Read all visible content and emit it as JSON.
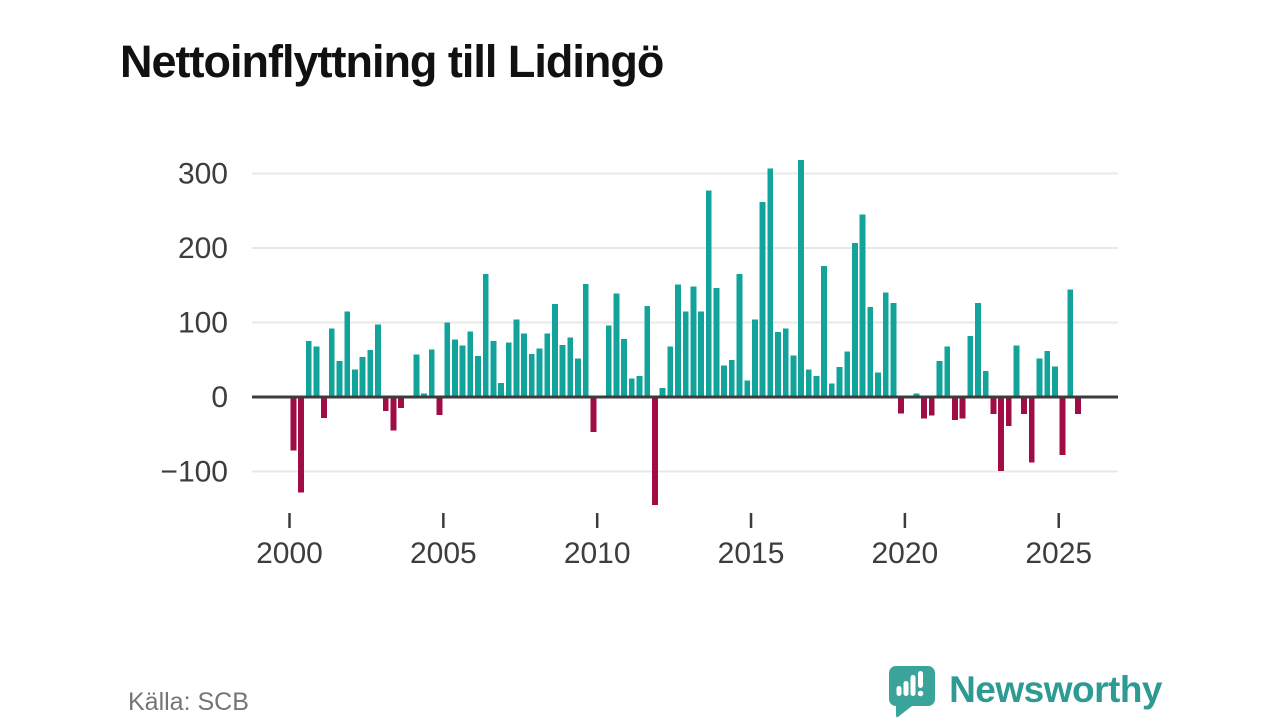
{
  "title": "Nettoinflyttning till Lidingö",
  "source": "Källa: SCB",
  "brand": {
    "name": "Newsworthy"
  },
  "colors": {
    "positive": "#12a39b",
    "negative": "#a00d44",
    "grid": "#e8e8e8",
    "axis": "#3c3c3c",
    "tick_label": "#3d3d3d",
    "title": "#111111",
    "source_text": "#757575",
    "brand": "#2d9a93",
    "brand_icon": "#3aa39a",
    "background": "#ffffff"
  },
  "chart_data": {
    "type": "bar",
    "title": "Nettoinflyttning till Lidingö",
    "xlabel": "",
    "ylabel": "",
    "ylim": [
      -160,
      330
    ],
    "grid": true,
    "legend": false,
    "y_ticks": [
      300,
      200,
      100,
      0,
      -100
    ],
    "y_tick_labels": [
      "300",
      "200",
      "100",
      "0",
      "−100"
    ],
    "x_tick_labels": [
      "2000",
      "2005",
      "2010",
      "2015",
      "2020",
      "2025"
    ],
    "frequency": "quarterly",
    "quarters": [
      "2000Q1",
      "2000Q2",
      "2000Q3",
      "2000Q4",
      "2001Q1",
      "2001Q2",
      "2001Q3",
      "2001Q4",
      "2002Q1",
      "2002Q2",
      "2002Q3",
      "2002Q4",
      "2003Q1",
      "2003Q2",
      "2003Q3",
      "2003Q4",
      "2004Q1",
      "2004Q2",
      "2004Q3",
      "2004Q4",
      "2005Q1",
      "2005Q2",
      "2005Q3",
      "2005Q4",
      "2006Q1",
      "2006Q2",
      "2006Q3",
      "2006Q4",
      "2007Q1",
      "2007Q2",
      "2007Q3",
      "2007Q4",
      "2008Q1",
      "2008Q2",
      "2008Q3",
      "2008Q4",
      "2009Q1",
      "2009Q2",
      "2009Q3",
      "2009Q4",
      "2010Q1",
      "2010Q2",
      "2010Q3",
      "2010Q4",
      "2011Q1",
      "2011Q2",
      "2011Q3",
      "2011Q4",
      "2012Q1",
      "2012Q2",
      "2012Q3",
      "2012Q4",
      "2013Q1",
      "2013Q2",
      "2013Q3",
      "2013Q4",
      "2014Q1",
      "2014Q2",
      "2014Q3",
      "2014Q4",
      "2015Q1",
      "2015Q2",
      "2015Q3",
      "2015Q4",
      "2016Q1",
      "2016Q2",
      "2016Q3",
      "2016Q4",
      "2017Q1",
      "2017Q2",
      "2017Q3",
      "2017Q4",
      "2018Q1",
      "2018Q2",
      "2018Q3",
      "2018Q4",
      "2019Q1",
      "2019Q2",
      "2019Q3",
      "2019Q4",
      "2020Q1",
      "2020Q2",
      "2020Q3",
      "2020Q4",
      "2021Q1",
      "2021Q2",
      "2021Q3",
      "2021Q4",
      "2022Q1",
      "2022Q2",
      "2022Q3",
      "2022Q4",
      "2023Q1",
      "2023Q2",
      "2023Q3",
      "2023Q4",
      "2024Q1",
      "2024Q2",
      "2024Q3",
      "2024Q4",
      "2025Q1",
      "2025Q2",
      "2025Q3"
    ],
    "values": [
      -72,
      -128,
      75,
      68,
      -28,
      92,
      48,
      115,
      37,
      54,
      63,
      97,
      -19,
      -45,
      -15,
      0,
      57,
      5,
      64,
      -24,
      100,
      77,
      69,
      88,
      55,
      165,
      75,
      19,
      73,
      104,
      85,
      58,
      65,
      85,
      125,
      70,
      80,
      52,
      152,
      -47,
      0,
      96,
      139,
      78,
      25,
      28,
      122,
      -145,
      12,
      68,
      151,
      115,
      148,
      115,
      277,
      146,
      42,
      50,
      165,
      22,
      104,
      262,
      307,
      87,
      92,
      56,
      318,
      37,
      28,
      176,
      18,
      40,
      61,
      207,
      245,
      121,
      33,
      140,
      126,
      -22,
      0,
      5,
      -29,
      -25,
      48,
      68,
      -31,
      -29,
      82,
      126,
      35,
      -23,
      -99,
      -39,
      69,
      -23,
      -88,
      52,
      62,
      41,
      -78,
      144,
      -23
    ]
  }
}
